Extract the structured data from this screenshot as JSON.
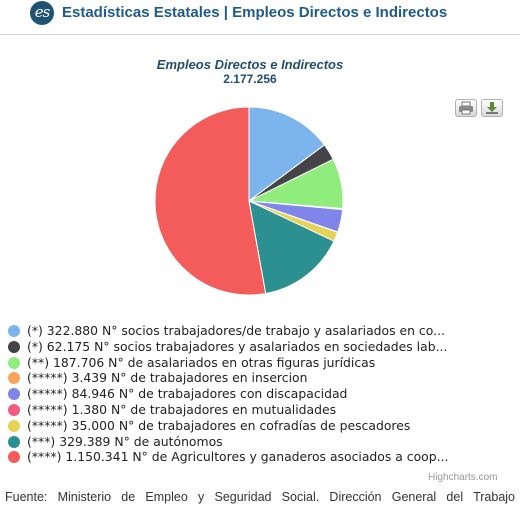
{
  "header": {
    "logo_text": "es",
    "title": "Estadísticas Estatales | Empleos Directos e Indirectos"
  },
  "chart_data": {
    "type": "pie",
    "title": "Empleos Directos e Indirectos",
    "subtitle": "2.177.256",
    "series": [
      {
        "label": "(*) 322.880 N° socios trabajadores/de trabajo y asalariados en co...",
        "value": 322880,
        "color": "#7cb5ec"
      },
      {
        "label": "(*) 62.175 N° socios trabajadores y asalariados en sociedades lab...",
        "value": 62175,
        "color": "#434348"
      },
      {
        "label": "(**) 187.706 N° de asalariados en otras figuras jurídicas",
        "value": 187706,
        "color": "#90ed7d"
      },
      {
        "label": "(*****) 3.439 N° de trabajadores en insercion",
        "value": 3439,
        "color": "#f7a35c"
      },
      {
        "label": "(*****) 84.946 N° de trabajadores con discapacidad",
        "value": 84946,
        "color": "#8085e9"
      },
      {
        "label": "(*****) 1.380 N° de trabajadores en mutualidades",
        "value": 1380,
        "color": "#f15c80"
      },
      {
        "label": "(*****) 35.000 N° de trabajadores en cofradías de pescadores",
        "value": 35000,
        "color": "#e4d354"
      },
      {
        "label": "(***) 329.389 N° de autónomos",
        "value": 329389,
        "color": "#2b908f"
      },
      {
        "label": "(****) 1.150.341 N° de Agricultores y ganaderos asociados a coop...",
        "value": 1150341,
        "color": "#f45b5b"
      }
    ],
    "legend_position": "bottom"
  },
  "toolbar": {
    "print_icon": "printer-icon",
    "export_icon": "download-icon"
  },
  "credits": "Highcharts.com",
  "footer": "Fuente: Ministerio de Empleo y Seguridad Social. Dirección General del Trabajo"
}
